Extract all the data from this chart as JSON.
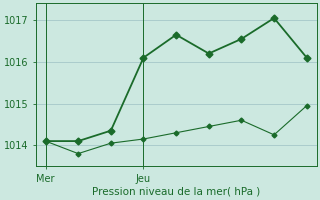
{
  "bg_color": "#cce8e0",
  "grid_color": "#aacccc",
  "line_color": "#1a6b2a",
  "title": "Pression niveau de la mer( hPa )",
  "x_ticks_labels": [
    "Mer",
    "Jeu"
  ],
  "x_ticks_pos": [
    0,
    3
  ],
  "ylim": [
    1013.5,
    1017.4
  ],
  "yticks": [
    1014,
    1015,
    1016,
    1017
  ],
  "xlim": [
    -0.3,
    8.3
  ],
  "series1_x": [
    0,
    1,
    2,
    3,
    4,
    5,
    6,
    7,
    8
  ],
  "series1_y": [
    1014.1,
    1014.1,
    1014.35,
    1016.1,
    1016.65,
    1016.2,
    1016.55,
    1017.05,
    1016.1
  ],
  "series2_x": [
    0,
    1,
    2,
    3,
    4,
    5,
    6,
    7,
    8
  ],
  "series2_y": [
    1014.1,
    1013.8,
    1014.05,
    1014.15,
    1014.3,
    1014.45,
    1014.6,
    1014.25,
    1014.95
  ]
}
